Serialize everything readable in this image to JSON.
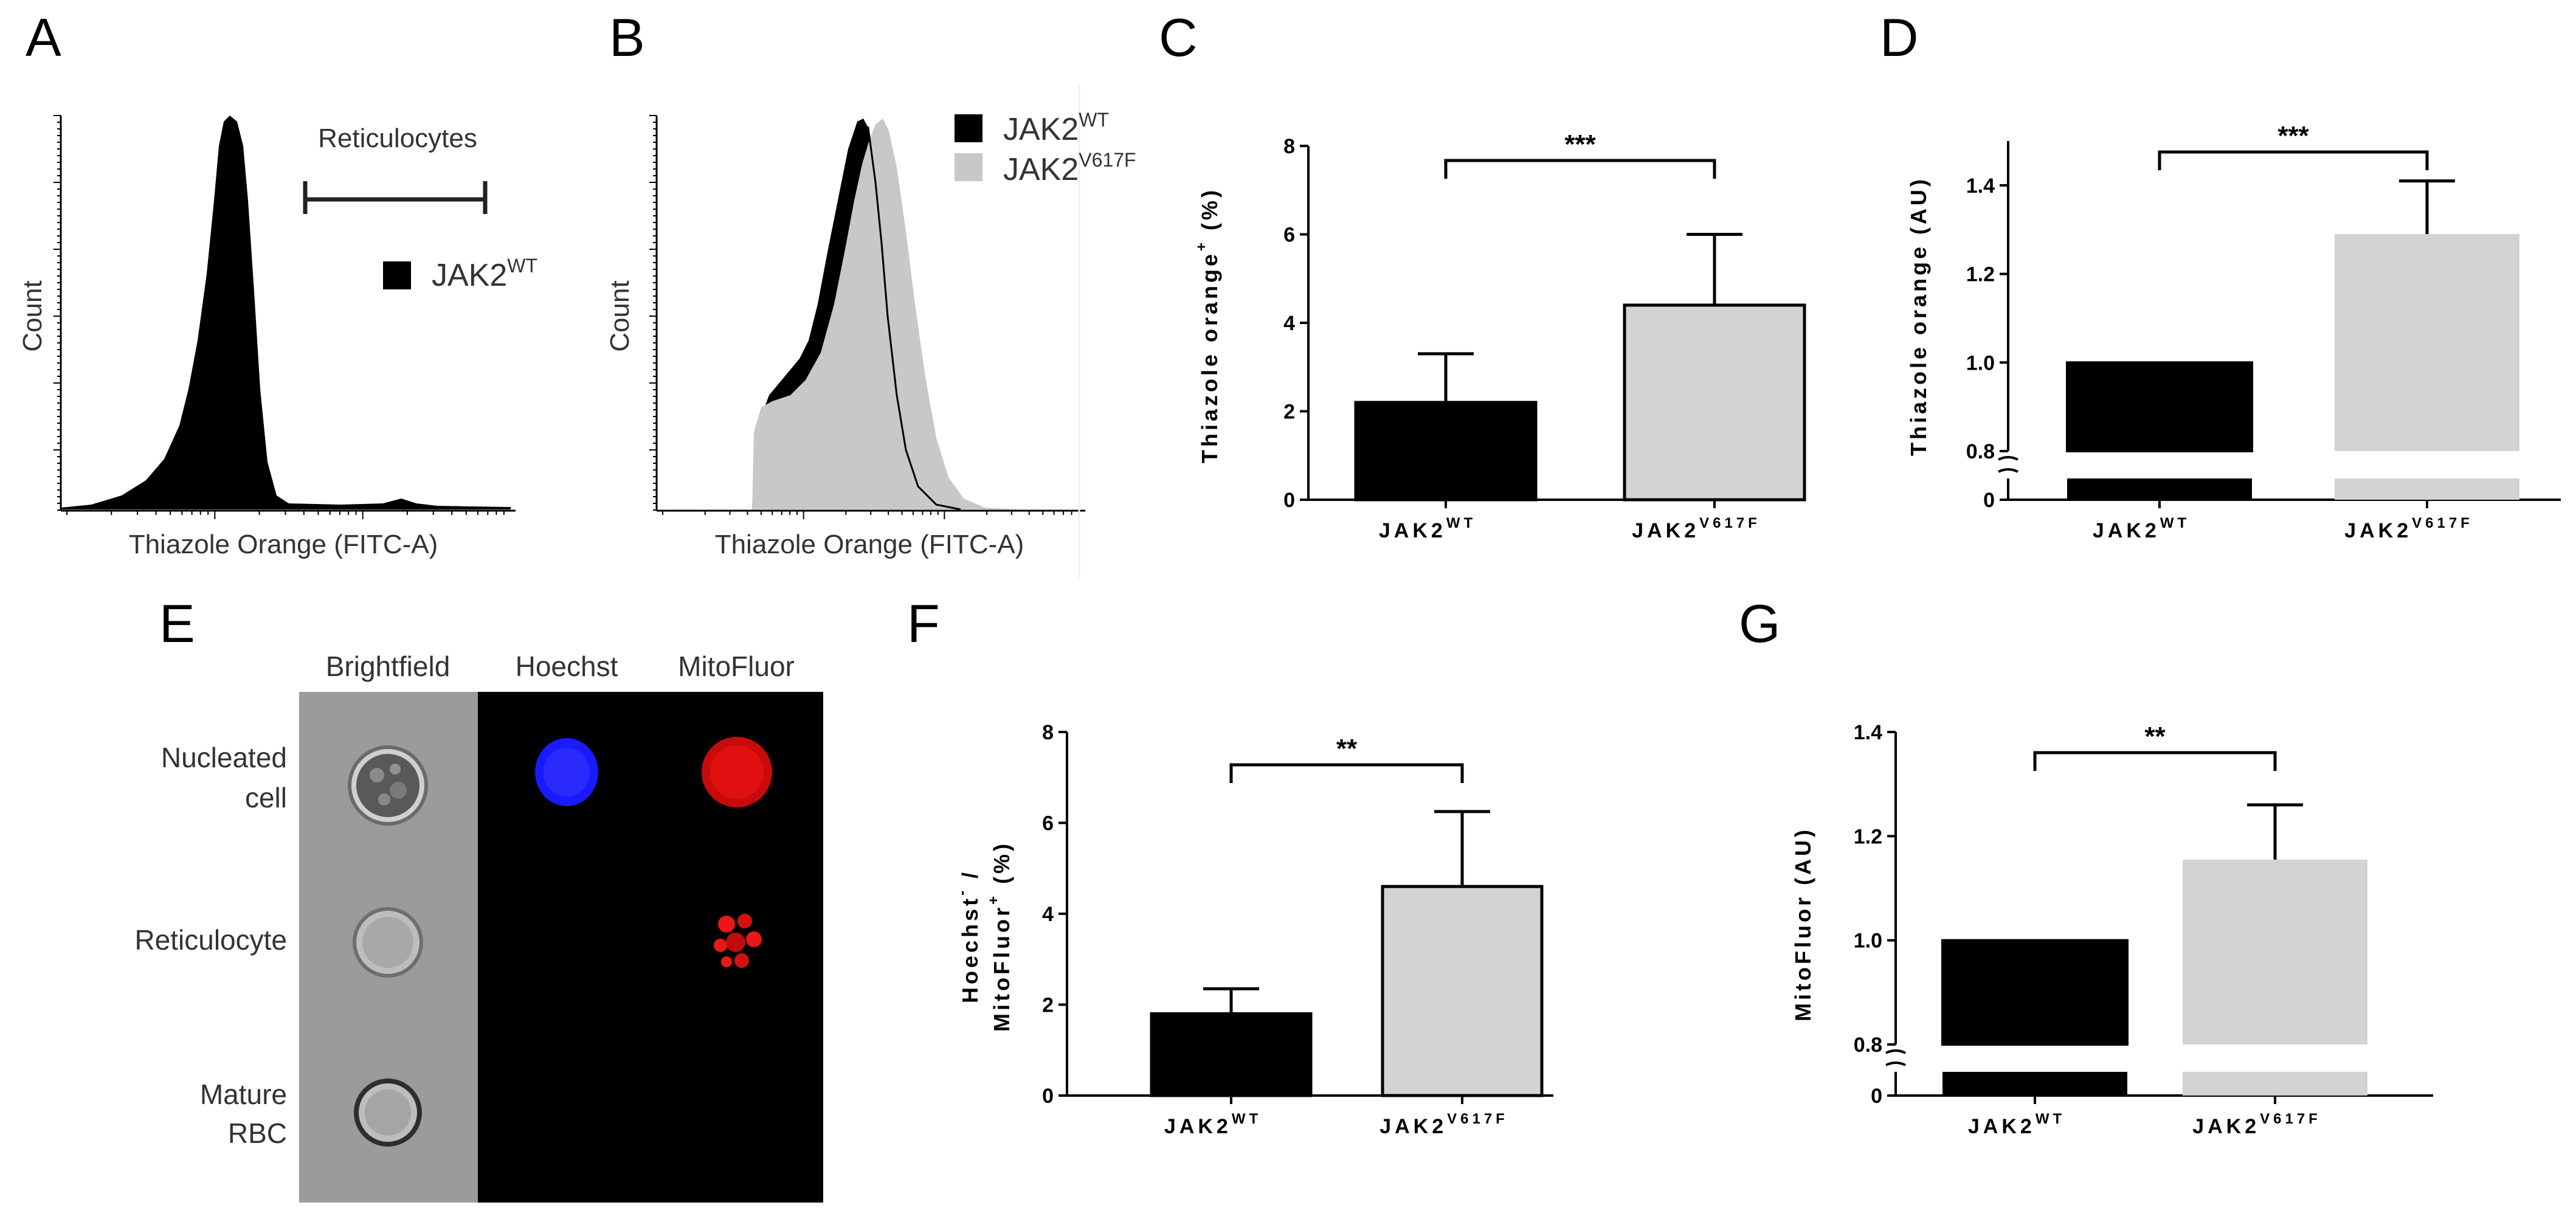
{
  "panel_labels": [
    "A",
    "B",
    "C",
    "D",
    "E",
    "F",
    "G"
  ],
  "colors": {
    "wt": "#000000",
    "mut": "#d3d3d3",
    "hoechst": "#1a1aff",
    "mitofluor": "#e01010"
  },
  "panel_a": {
    "x_label": "Thiazole Orange (FITC-A)",
    "y_label": "Count",
    "gate_label": "Reticulocytes",
    "legend": {
      "base": "JAK2",
      "sup": "WT"
    }
  },
  "panel_b": {
    "x_label": "Thiazole Orange (FITC-A)",
    "y_label": "Count",
    "legend": [
      {
        "base": "JAK2",
        "sup": "WT",
        "color": "#000000"
      },
      {
        "base": "JAK2",
        "sup": "V617F",
        "color": "#c8c8c8"
      }
    ]
  },
  "panel_e": {
    "columns": [
      "Brightfield",
      "Hoechst",
      "MitoFluor"
    ],
    "rows": [
      {
        "line1": "Nucleated",
        "line2": "cell"
      },
      {
        "line1": "Reticulocyte",
        "line2": ""
      },
      {
        "line1": "Mature",
        "line2": "RBC"
      }
    ]
  },
  "chart_data": [
    {
      "panel": "C",
      "type": "bar",
      "categories": [
        {
          "base": "JAK2",
          "sup": "WT"
        },
        {
          "base": "JAK2",
          "sup": "V617F"
        }
      ],
      "values": [
        2.2,
        4.4
      ],
      "errors": [
        1.1,
        1.6
      ],
      "ylabel": {
        "base": "Thiazole orange",
        "sup": "+",
        "suffix": " (%)"
      },
      "ylim": [
        0,
        8
      ],
      "yticks": [
        "0",
        "2",
        "4",
        "6",
        "8"
      ],
      "significance": "***",
      "axis_break": false
    },
    {
      "panel": "D",
      "type": "bar",
      "categories": [
        {
          "base": "JAK2",
          "sup": "WT"
        },
        {
          "base": "JAK2",
          "sup": "V617F"
        }
      ],
      "values": [
        1.0,
        1.29
      ],
      "errors": [
        0,
        0.12
      ],
      "ylabel": {
        "base": "Thiazole orange (AU)",
        "sup": "",
        "suffix": ""
      },
      "ylim": [
        0.8,
        1.5
      ],
      "yticks": [
        "0",
        "0.8",
        "1.0",
        "1.2",
        "1.4"
      ],
      "significance": "***",
      "axis_break": true
    },
    {
      "panel": "F",
      "type": "bar",
      "categories": [
        {
          "base": "JAK2",
          "sup": "WT"
        },
        {
          "base": "JAK2",
          "sup": "V617F"
        }
      ],
      "values": [
        1.8,
        4.6
      ],
      "errors": [
        0.55,
        1.65
      ],
      "ylabel_line1": {
        "base": "Hoechst",
        "sup": "-",
        "suffix": " /"
      },
      "ylabel_line2": {
        "base": "MitoFluor",
        "sup": "+",
        "suffix": " (%)"
      },
      "ylim": [
        0,
        8
      ],
      "yticks": [
        "0",
        "2",
        "4",
        "6",
        "8"
      ],
      "significance": "**",
      "axis_break": false
    },
    {
      "panel": "G",
      "type": "bar",
      "categories": [
        {
          "base": "JAK2",
          "sup": "WT"
        },
        {
          "base": "JAK2",
          "sup": "V617F"
        }
      ],
      "values": [
        1.0,
        1.155
      ],
      "errors": [
        0,
        0.105
      ],
      "ylabel": {
        "base": "MitoFluor (AU)",
        "sup": "",
        "suffix": ""
      },
      "ylim": [
        0.8,
        1.4
      ],
      "yticks": [
        "0",
        "0.8",
        "1.0",
        "1.2",
        "1.4"
      ],
      "significance": "**",
      "axis_break": true
    }
  ]
}
